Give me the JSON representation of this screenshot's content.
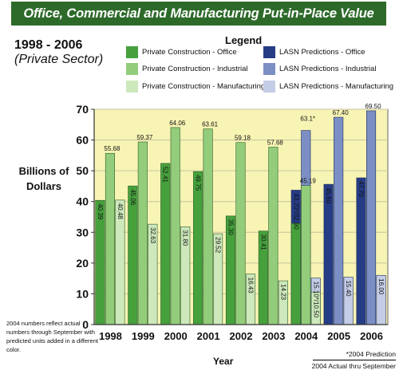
{
  "banner": {
    "title": "Office, Commercial and Manufacturing Put-in-Place Value"
  },
  "subtitle": {
    "period": "1998 - 2006",
    "sector": "(Private Sector)"
  },
  "legend": {
    "title": "Legend",
    "items": [
      {
        "label": "Private Construction - Office",
        "color": "#46a13c"
      },
      {
        "label": "Private Construction - Industrial",
        "color": "#93cd7b"
      },
      {
        "label": "Private Construction - Manufacturing",
        "color": "#cde8bb"
      },
      {
        "label": "LASN Predictions - Office",
        "color": "#263c85"
      },
      {
        "label": "LASN Predictions - Industrial",
        "color": "#7c8fc4"
      },
      {
        "label": "LASN Predictions - Manufacturing",
        "color": "#c4cde6"
      }
    ]
  },
  "note": "2004 numbers reflect actual numbers through September with predicted units added in a different color.",
  "footnote": {
    "line1": "*2004 Prediction",
    "line2": "2004 Actual thru September"
  },
  "chart_data": {
    "type": "bar",
    "title": "Office, Commercial and Manufacturing Put-in-Place Value",
    "ylabel": "Billions of Dollars",
    "xlabel": "Year",
    "ylim": [
      0,
      70
    ],
    "yticks": [
      "0",
      "10",
      "20",
      "30",
      "40",
      "50",
      "60",
      "70"
    ],
    "grid": true,
    "legend_position": "top",
    "categories": [
      "1998",
      "1999",
      "2000",
      "2001",
      "2002",
      "2003",
      "2004",
      "2005",
      "2006"
    ],
    "series": [
      {
        "name": "Private Construction - Office",
        "color": "#46a13c",
        "values": [
          40.39,
          45.06,
          52.41,
          49.75,
          35.3,
          30.41,
          32.9,
          null,
          null
        ],
        "labels": [
          "40.39",
          "45.06",
          "52.41",
          "49.75",
          "35.30",
          "30.41",
          "",
          "",
          ""
        ]
      },
      {
        "name": "Private Construction - Industrial",
        "color": "#93cd7b",
        "values": [
          55.68,
          59.37,
          64.06,
          63.61,
          59.18,
          57.68,
          45.19,
          null,
          null
        ],
        "labels": [
          "55.68",
          "59.37",
          "64.06",
          "63.61",
          "59.18",
          "57.68",
          "45.19",
          "",
          ""
        ]
      },
      {
        "name": "Private Construction - Manufacturing",
        "color": "#cde8bb",
        "values": [
          40.48,
          32.63,
          31.8,
          29.52,
          16.43,
          14.23,
          10.5,
          null,
          null
        ],
        "labels": [
          "40.48",
          "32.63",
          "31.80",
          "29.52",
          "16.43",
          "14.23",
          "",
          "",
          ""
        ]
      },
      {
        "name": "LASN Predictions - Office",
        "color": "#263c85",
        "values": [
          null,
          null,
          null,
          null,
          null,
          null,
          43.7,
          45.6,
          47.7
        ],
        "labels": [
          "",
          "",
          "",
          "",
          "",
          "",
          "",
          "45.60",
          "47.70"
        ]
      },
      {
        "name": "LASN Predictions - Industrial",
        "color": "#7c8fc4",
        "values": [
          null,
          null,
          null,
          null,
          null,
          null,
          63.1,
          67.4,
          69.5
        ],
        "labels": [
          "",
          "",
          "",
          "",
          "",
          "",
          "63.1*",
          "67.40",
          "69.50"
        ]
      },
      {
        "name": "LASN Predictions - Manufacturing",
        "color": "#c4cde6",
        "values": [
          null,
          null,
          null,
          null,
          null,
          null,
          15.1,
          15.4,
          16.0
        ],
        "labels": [
          "",
          "",
          "",
          "",
          "",
          "",
          "",
          "15.40",
          "16.00"
        ]
      }
    ],
    "annotations": [
      {
        "category": "2004",
        "text": "43.70*/32.90",
        "group": "office"
      },
      {
        "category": "2004",
        "text": "15.10*/10.50",
        "group": "manufacturing"
      }
    ]
  }
}
